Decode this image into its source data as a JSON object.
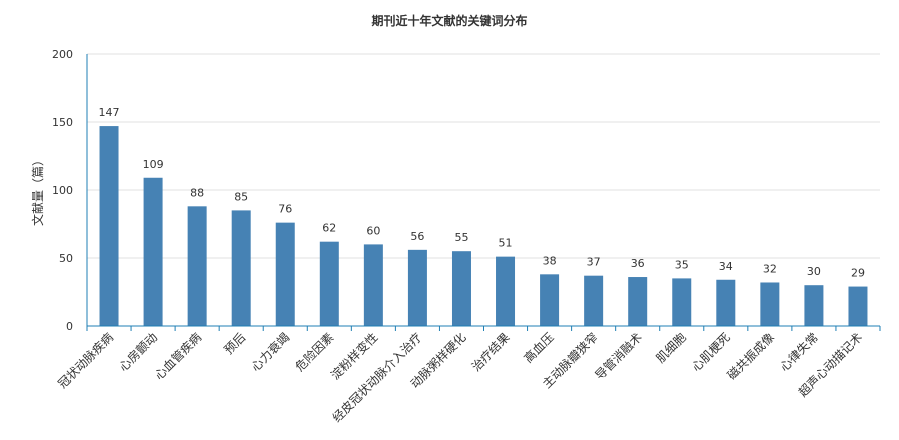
{
  "chart_data": {
    "type": "bar",
    "title": "期刊近十年文献的关键词分布",
    "xlabel": "",
    "ylabel": "文献量（篇）",
    "ylim": [
      0,
      200
    ],
    "yticks": [
      0,
      50,
      100,
      150,
      200
    ],
    "grid": true,
    "legend": "none",
    "bar_color": "#4682b4",
    "categories": [
      "冠状动脉疾病",
      "心房颤动",
      "心血管疾病",
      "预后",
      "心力衰竭",
      "危险因素",
      "淀粉样变性",
      "经皮冠状动脉介入治疗",
      "动脉粥样硬化",
      "治疗结果",
      "高血压",
      "主动脉瓣狭窄",
      "导管消融术",
      "肌细胞",
      "心肌梗死",
      "磁共振成像",
      "心律失常",
      "超声心动描记术"
    ],
    "values": [
      147,
      109,
      88,
      85,
      76,
      62,
      60,
      56,
      55,
      51,
      38,
      37,
      36,
      35,
      34,
      32,
      30,
      29
    ]
  }
}
